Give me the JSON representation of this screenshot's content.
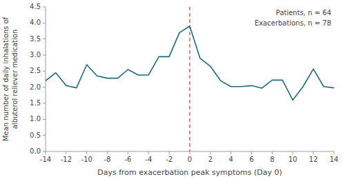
{
  "chart_data": {
    "type": "line",
    "xlabel": "Days from exacerbation peak symptoms (Day 0)",
    "ylabel": "Mean number of daily inhalations of\nalbuterol reliever medication",
    "x": [
      -14,
      -13,
      -12,
      -11,
      -10,
      -9,
      -8,
      -7,
      -6,
      -5,
      -4,
      -3,
      -2,
      -1,
      0,
      1,
      2,
      3,
      4,
      5,
      6,
      7,
      8,
      9,
      10,
      11,
      12,
      13,
      14
    ],
    "values": [
      2.2,
      2.45,
      2.05,
      1.98,
      2.7,
      2.35,
      2.28,
      2.28,
      2.55,
      2.38,
      2.38,
      2.95,
      2.95,
      3.7,
      3.9,
      2.9,
      2.65,
      2.2,
      2.02,
      2.02,
      2.05,
      1.97,
      2.22,
      2.22,
      1.6,
      2.02,
      2.57,
      2.02,
      1.98
    ],
    "color": "#1a6b82",
    "reference_lines": [
      {
        "x": 0,
        "color": "#c0392b",
        "line_style": "dashed"
      }
    ],
    "annotations": [
      "Patients, n = 64",
      "Exacerbations, n = 78"
    ],
    "xlim": [
      -14,
      14
    ],
    "xticks": [
      -14,
      -12,
      -10,
      -8,
      -6,
      -4,
      -2,
      0,
      2,
      4,
      6,
      8,
      10,
      12,
      14
    ],
    "ylim": [
      0.0,
      4.5
    ],
    "yticks": [
      {
        "value": 0.0,
        "label": "0.0"
      },
      {
        "value": 0.5,
        "label": "0.5"
      },
      {
        "value": 1.0,
        "label": "1.0"
      },
      {
        "value": 1.5,
        "label": "1.5"
      },
      {
        "value": 2.0,
        "label": "2.0"
      },
      {
        "value": 2.5,
        "label": "2.5"
      },
      {
        "value": 3.0,
        "label": "3.0"
      },
      {
        "value": 3.5,
        "label": "3.5"
      },
      {
        "value": 4.0,
        "label": "4.0"
      },
      {
        "value": 4.5,
        "label": "4.5"
      }
    ],
    "grid": false
  }
}
